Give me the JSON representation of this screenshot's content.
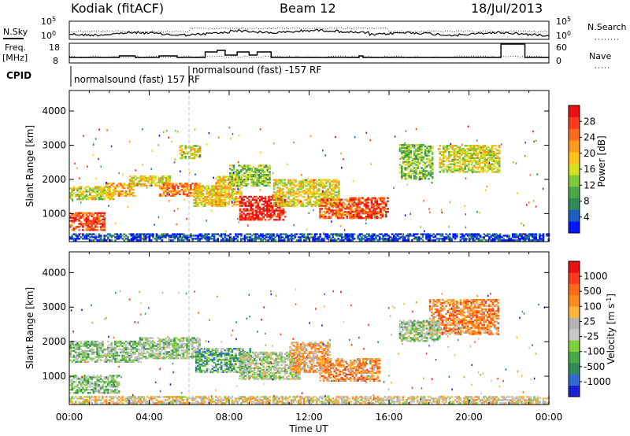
{
  "header": {
    "station": "Kodiak (fitACF)",
    "beam": "Beam 12",
    "date": "18/Jul/2013"
  },
  "top_panel": {
    "left_label": "N.Sky",
    "right_label": "N.Search",
    "tick_top": "10^5",
    "tick_bottom": "10^0"
  },
  "freq_panel": {
    "left_label_1": "Freq.",
    "left_label_2": "[MHz]",
    "left_ticks": [
      "18",
      "8"
    ],
    "right_label": "Nave",
    "right_ticks": [
      "60",
      "0"
    ]
  },
  "cpid": {
    "label": "CPID",
    "entries": [
      {
        "text": "normalsound (fast)  157 RF"
      },
      {
        "text": "normalsound (fast) -157 RF"
      }
    ]
  },
  "chart_data": [
    {
      "type": "heatmap",
      "name": "Power",
      "ylabel": "Slant Range [km]",
      "xlabel": "",
      "ylim": [
        180,
        4600
      ],
      "y_ticks": [
        "1000",
        "2000",
        "3000",
        "4000"
      ],
      "x_ticks": [
        "00:00",
        "04:00",
        "08:00",
        "12:00",
        "16:00",
        "20:00",
        "00:00"
      ],
      "colorbar": {
        "label": "Power [dB]",
        "ticks": [
          "4",
          "8",
          "12",
          "16",
          "20",
          "24",
          "28"
        ],
        "colors": [
          "#0016ff",
          "#1a5fbf",
          "#2e8b57",
          "#4aa84a",
          "#7fc93a",
          "#d6e01e",
          "#ffc21a",
          "#ff9a1a",
          "#ff6b1a",
          "#ff3a1a",
          "#e81010"
        ]
      },
      "regions": [
        {
          "t0": 0.0,
          "t1": 1.8,
          "r0": 500,
          "r1": 1000,
          "level": 0.85
        },
        {
          "t0": 0.0,
          "t1": 2.2,
          "r0": 1400,
          "r1": 1800,
          "level": 0.5
        },
        {
          "t0": 1.8,
          "t1": 3.2,
          "r0": 1500,
          "r1": 1900,
          "level": 0.65
        },
        {
          "t0": 3.0,
          "t1": 5.0,
          "r0": 1800,
          "r1": 2100,
          "level": 0.55
        },
        {
          "t0": 4.5,
          "t1": 6.5,
          "r0": 1500,
          "r1": 1900,
          "level": 0.75
        },
        {
          "t0": 6.2,
          "t1": 7.6,
          "r0": 1200,
          "r1": 1800,
          "level": 0.55
        },
        {
          "t0": 7.3,
          "t1": 8.6,
          "r0": 1200,
          "r1": 2100,
          "level": 0.6
        },
        {
          "t0": 8.5,
          "t1": 10.8,
          "r0": 800,
          "r1": 1500,
          "level": 0.95
        },
        {
          "t0": 10.2,
          "t1": 13.5,
          "r0": 1200,
          "r1": 2000,
          "level": 0.55
        },
        {
          "t0": 12.5,
          "t1": 14.5,
          "r0": 850,
          "r1": 1400,
          "level": 0.8
        },
        {
          "t0": 14.0,
          "t1": 15.9,
          "r0": 850,
          "r1": 1450,
          "level": 0.85
        },
        {
          "t0": 16.5,
          "t1": 18.2,
          "r0": 2000,
          "r1": 3000,
          "level": 0.4
        },
        {
          "t0": 18.5,
          "t1": 21.5,
          "r0": 2200,
          "r1": 3000,
          "level": 0.5
        },
        {
          "t0": 8.0,
          "t1": 10.0,
          "r0": 1800,
          "r1": 2400,
          "level": 0.4
        },
        {
          "t0": 5.5,
          "t1": 6.5,
          "r0": 2600,
          "r1": 3000,
          "level": 0.5
        },
        {
          "t0": 0.0,
          "t1": 24.0,
          "r0": 200,
          "r1": 420,
          "level": 0.1
        }
      ]
    },
    {
      "type": "heatmap",
      "name": "Velocity",
      "ylabel": "Slant Range [km]",
      "xlabel": "Time UT",
      "ylim": [
        180,
        4600
      ],
      "y_ticks": [
        "1000",
        "2000",
        "3000",
        "4000"
      ],
      "x_ticks": [
        "00:00",
        "04:00",
        "08:00",
        "12:00",
        "16:00",
        "20:00",
        "00:00"
      ],
      "colorbar": {
        "label": "Velocity [m s^-1]",
        "ticks": [
          "1000",
          "500",
          "100",
          "25",
          "-25",
          "-100",
          "-500",
          "-1000"
        ],
        "colors": [
          "#1a1fcf",
          "#2f6bd0",
          "#2e8b57",
          "#46a846",
          "#7fd03a",
          "#c8c8c8",
          "#b4b4b4",
          "#ffb43c",
          "#ff8c1a",
          "#ff6b1a",
          "#ff3a1a",
          "#e81010"
        ]
      },
      "regions": [
        {
          "t0": 0.0,
          "t1": 2.5,
          "r0": 500,
          "r1": 1000,
          "level": 0.38
        },
        {
          "t0": 0.0,
          "t1": 3.5,
          "r0": 1400,
          "r1": 2000,
          "level": 0.4
        },
        {
          "t0": 3.5,
          "t1": 6.5,
          "r0": 1500,
          "r1": 2100,
          "level": 0.42
        },
        {
          "t0": 6.3,
          "t1": 9.0,
          "r0": 1100,
          "r1": 1800,
          "level": 0.3
        },
        {
          "t0": 8.5,
          "t1": 11.5,
          "r0": 900,
          "r1": 1700,
          "level": 0.45
        },
        {
          "t0": 11.0,
          "t1": 13.0,
          "r0": 1100,
          "r1": 2000,
          "level": 0.65
        },
        {
          "t0": 12.5,
          "t1": 15.5,
          "r0": 850,
          "r1": 1500,
          "level": 0.7
        },
        {
          "t0": 18.0,
          "t1": 21.5,
          "r0": 2200,
          "r1": 3200,
          "level": 0.72
        },
        {
          "t0": 16.5,
          "t1": 18.5,
          "r0": 2000,
          "r1": 2600,
          "level": 0.42
        },
        {
          "t0": 0.0,
          "t1": 24.0,
          "r0": 200,
          "r1": 420,
          "level": 0.55
        }
      ]
    }
  ]
}
